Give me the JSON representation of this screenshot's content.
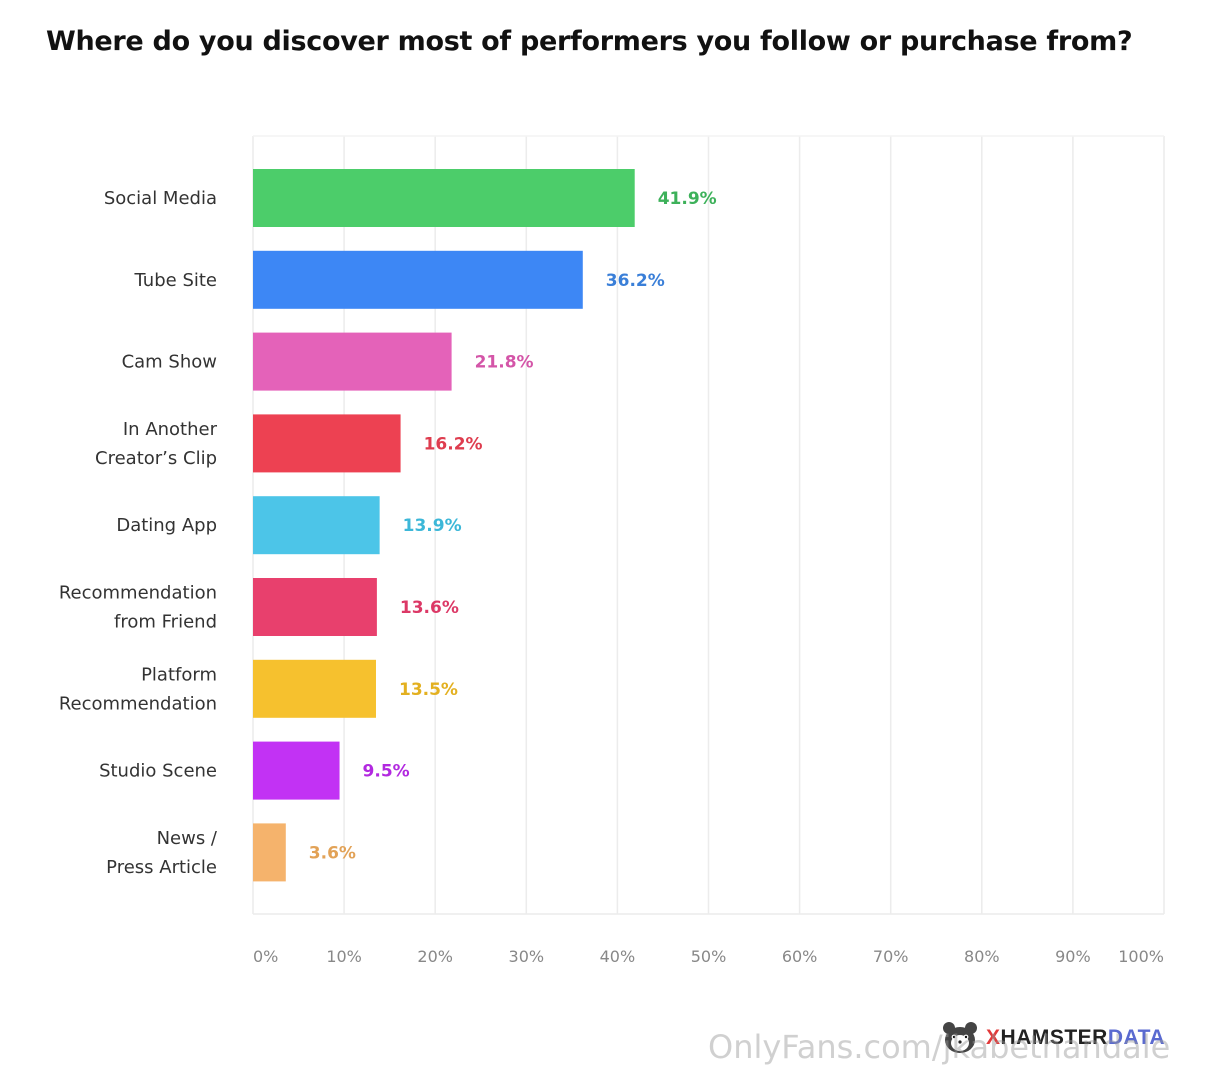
{
  "chart_data": {
    "type": "bar",
    "orientation": "horizontal",
    "title": "Where do you discover most of performers you follow or purchase from?",
    "categories": [
      [
        "Social Media"
      ],
      [
        "Tube Site"
      ],
      [
        "Cam Show"
      ],
      [
        "In Another",
        "Creator’s Clip"
      ],
      [
        "Dating App"
      ],
      [
        "Recommendation",
        "from Friend"
      ],
      [
        "Platform",
        "Recommendation"
      ],
      [
        "Studio Scene"
      ],
      [
        "News /",
        "Press Article"
      ]
    ],
    "values": [
      41.9,
      36.2,
      21.8,
      16.2,
      13.9,
      13.6,
      13.5,
      9.5,
      3.6
    ],
    "value_labels": [
      "41.9%",
      "36.2%",
      "21.8%",
      "16.2%",
      "13.9%",
      "13.6%",
      "13.5%",
      "9.5%",
      "3.6%"
    ],
    "colors": [
      "#4ccd6a",
      "#3d87f5",
      "#e462b9",
      "#ed4152",
      "#4cc5e8",
      "#e8406d",
      "#f6c12e",
      "#c232f4",
      "#f5b36c"
    ],
    "label_colors": [
      "#3db15a",
      "#3a7fd8",
      "#d455a8",
      "#de3c4e",
      "#3cb7d8",
      "#dc3866",
      "#e3b020",
      "#b229e0",
      "#e2a257"
    ],
    "xlim": [
      0,
      100
    ],
    "x_ticks": [
      "0%",
      "10%",
      "20%",
      "30%",
      "40%",
      "50%",
      "60%",
      "70%",
      "80%",
      "90%",
      "100%"
    ],
    "grid": true,
    "xlabel": "",
    "ylabel": ""
  },
  "branding": {
    "logo_x": "X",
    "logo_mid": "HAMSTER",
    "logo_data": "DATA",
    "logo_icon": "hamster-icon"
  },
  "watermark": "OnlyFans.com/jkabethandale"
}
